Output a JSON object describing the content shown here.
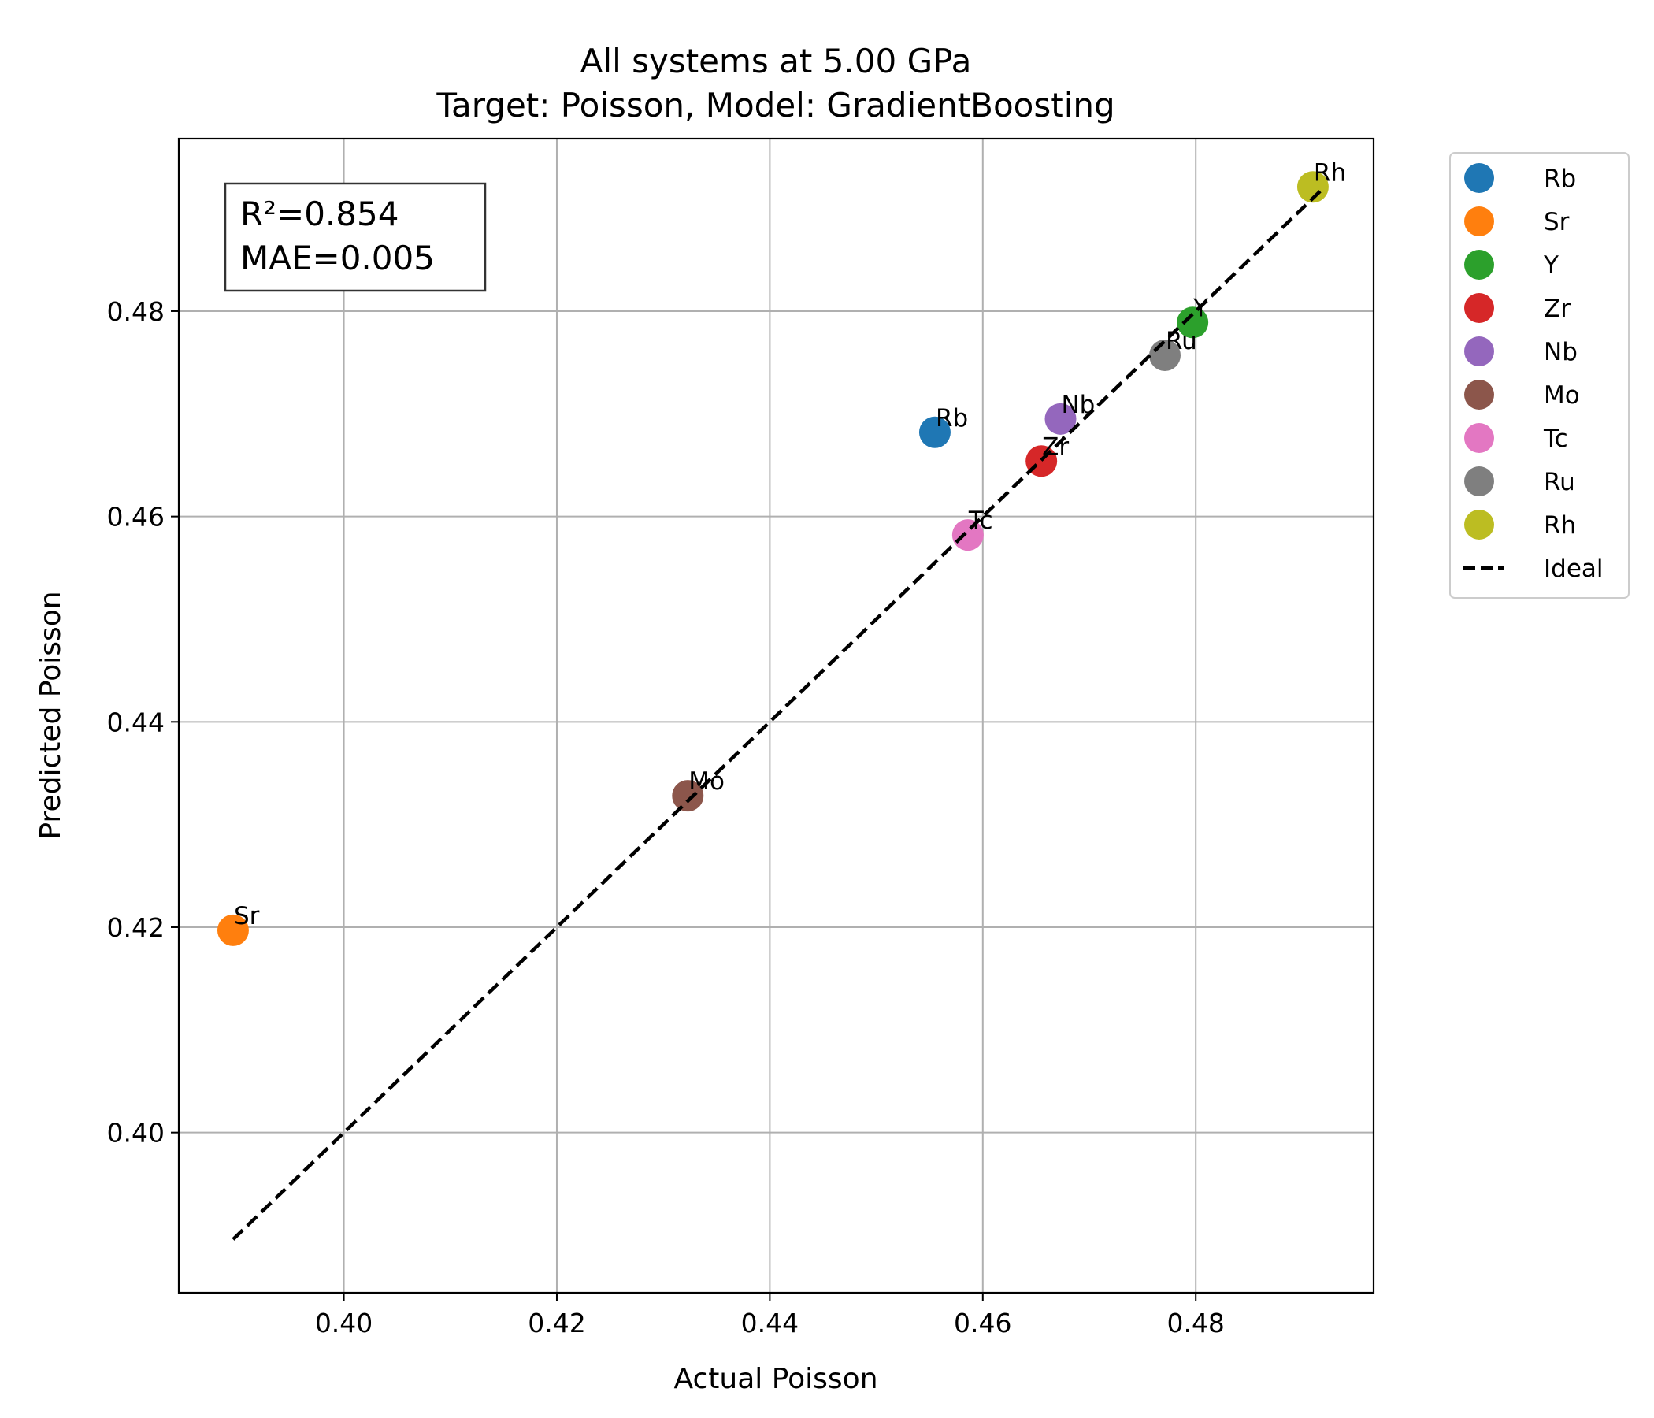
{
  "chart_data": {
    "type": "scatter",
    "title": "All systems at 5.00 GPa",
    "subtitle": "Target: Poisson, Model: GradientBoosting",
    "xlabel": "Actual Poisson",
    "ylabel": "Predicted Poisson",
    "xlim": [
      0.3845,
      0.4967
    ],
    "ylim": [
      0.3844,
      0.4968
    ],
    "xticks": [
      "0.40",
      "0.42",
      "0.44",
      "0.46",
      "0.48"
    ],
    "yticks": [
      "0.40",
      "0.42",
      "0.44",
      "0.46",
      "0.48"
    ],
    "grid": true,
    "legend_placement": "outside-right-top",
    "stats": {
      "r2": "R²=0.854",
      "mae": "MAE=0.005"
    },
    "series": [
      {
        "name": "Rb",
        "label": "Rb",
        "x": 0.4555,
        "y": 0.4682,
        "color": "#1f77b4"
      },
      {
        "name": "Sr",
        "label": "Sr",
        "x": 0.3896,
        "y": 0.4197,
        "color": "#ff7f0e"
      },
      {
        "name": "Y",
        "label": "Y",
        "x": 0.4797,
        "y": 0.4789,
        "color": "#2ca02c"
      },
      {
        "name": "Zr",
        "label": "Zr",
        "x": 0.4655,
        "y": 0.4654,
        "color": "#d62728"
      },
      {
        "name": "Nb",
        "label": "Nb",
        "x": 0.4673,
        "y": 0.4695,
        "color": "#9467bd"
      },
      {
        "name": "Mo",
        "label": "Mo",
        "x": 0.4323,
        "y": 0.4328,
        "color": "#8c564b"
      },
      {
        "name": "Tc",
        "label": "Tc",
        "x": 0.4586,
        "y": 0.4582,
        "color": "#e377c2"
      },
      {
        "name": "Ru",
        "label": "Ru",
        "x": 0.4771,
        "y": 0.4757,
        "color": "#7f7f7f"
      },
      {
        "name": "Rh",
        "label": "Rh",
        "x": 0.491,
        "y": 0.4921,
        "color": "#bcbd22"
      }
    ],
    "ideal_line": {
      "name": "Ideal",
      "x": [
        0.3896,
        0.492
      ],
      "y": [
        0.3896,
        0.492
      ],
      "color": "#000000",
      "style": "dashed"
    }
  }
}
